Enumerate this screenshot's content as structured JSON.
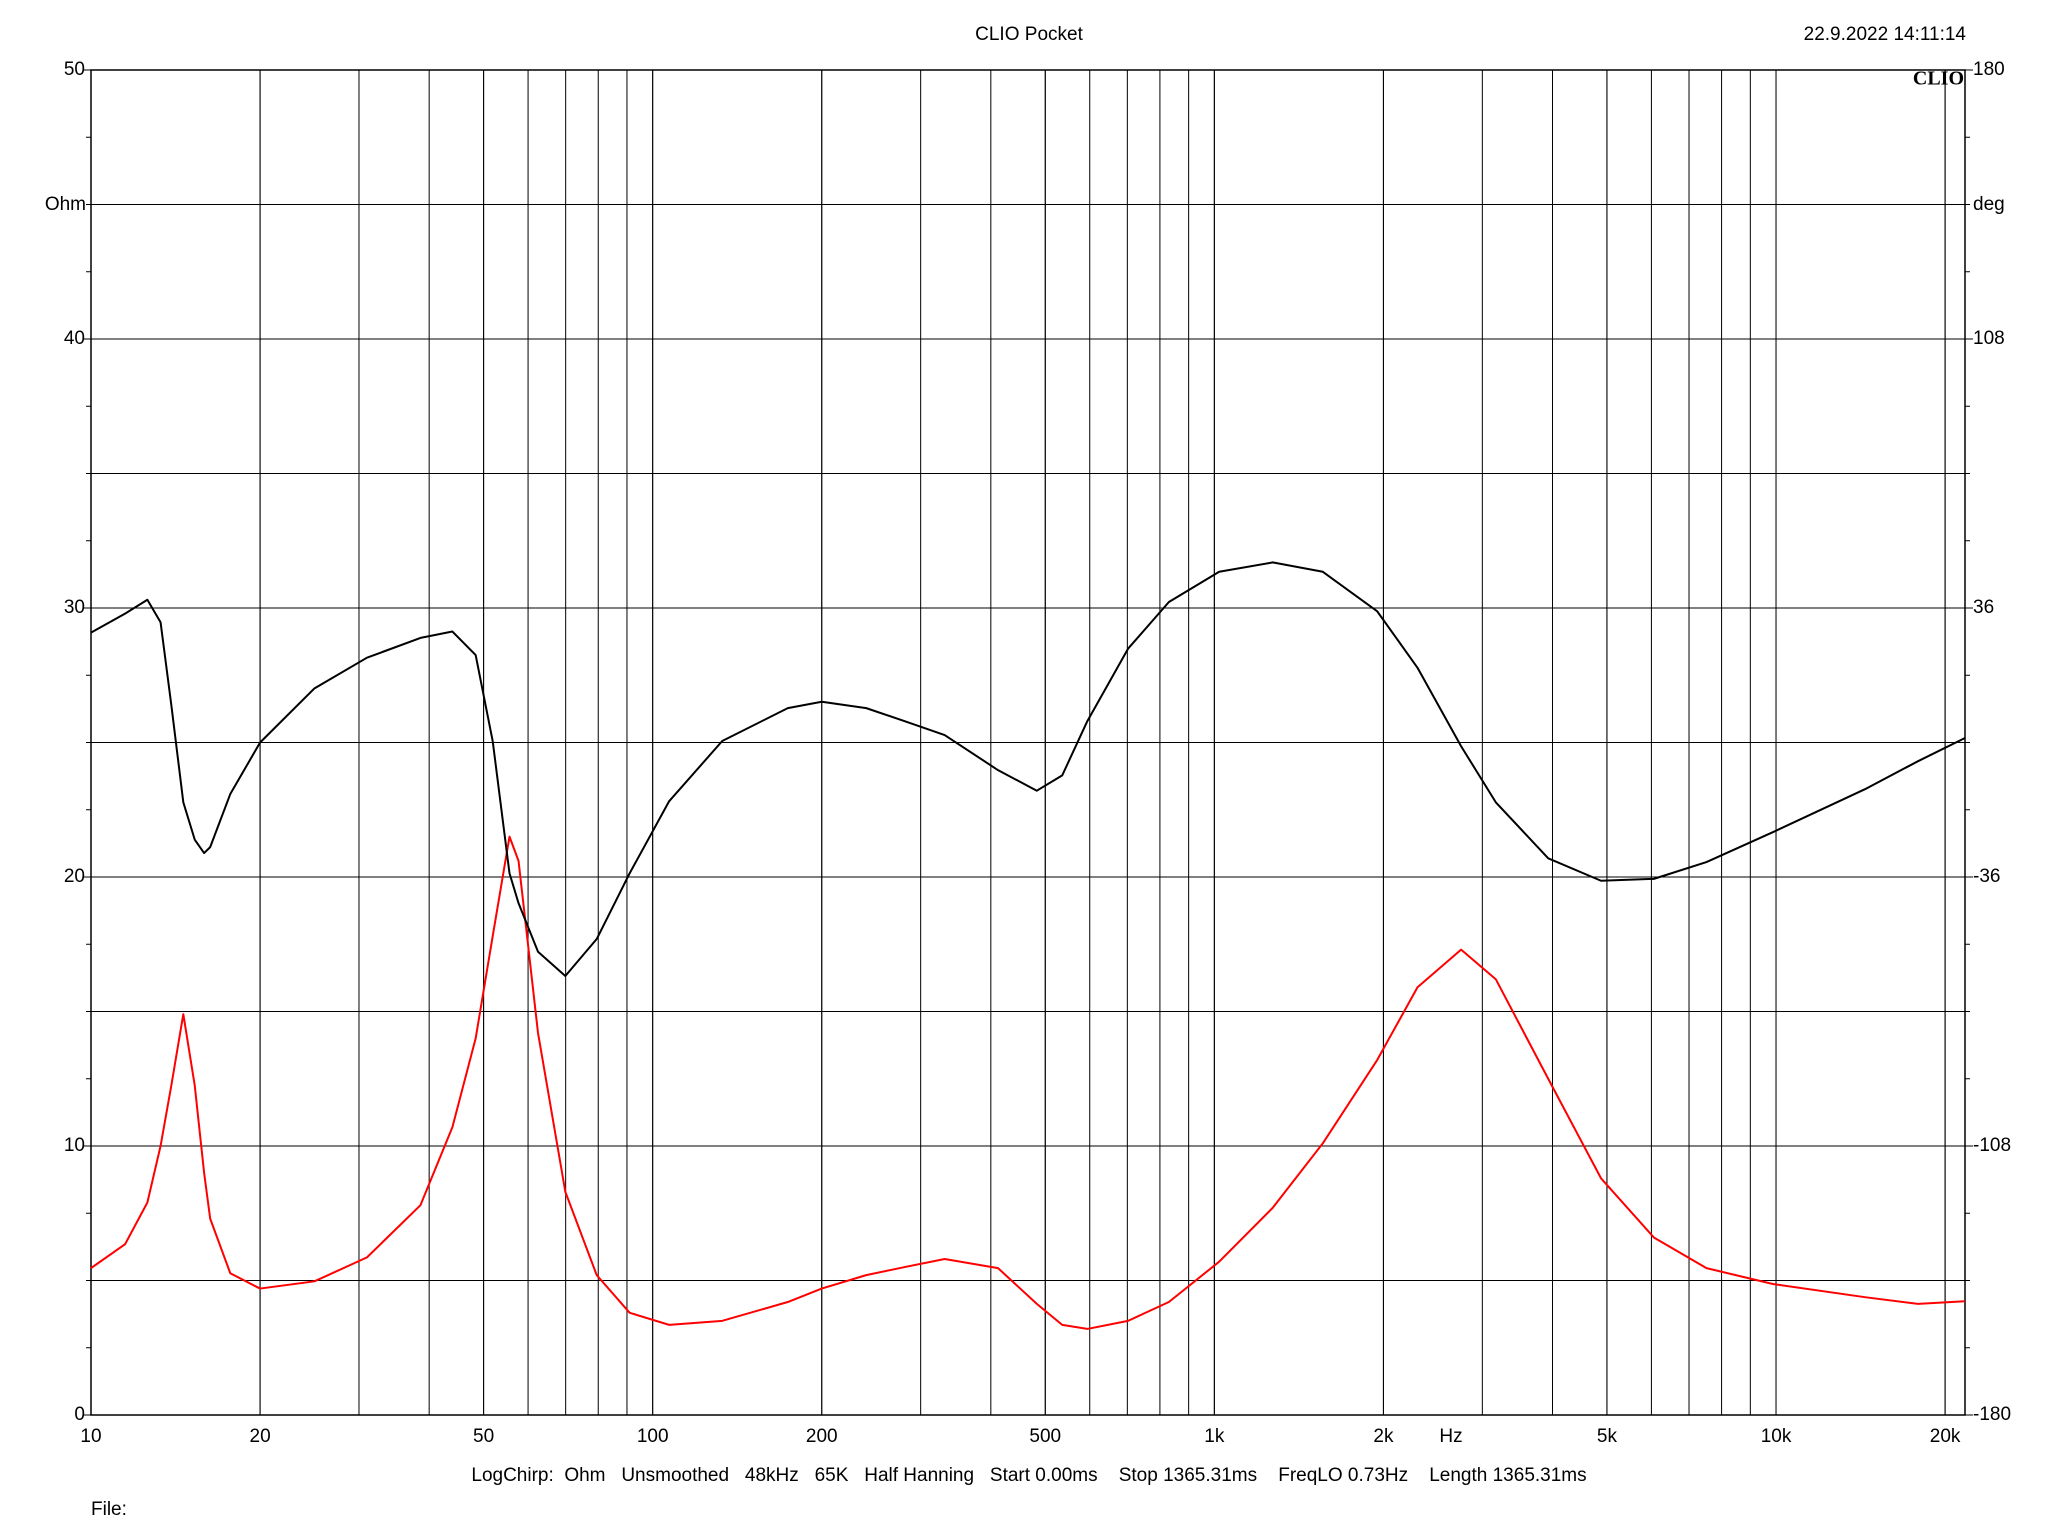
{
  "chart_data": {
    "type": "line",
    "title": "CLIO Pocket",
    "timestamp": "22.9.2022 14:11:14",
    "logo": "CLIO",
    "ylabel": "Ohm",
    "y2label": "deg",
    "xlabel": "Hz",
    "footer": "LogChirp:  Ohm   Unsmoothed   48kHz   65K   Half Hanning   Start 0.00ms    Stop 1365.31ms    FreqLO 0.73Hz    Length 1365.31ms",
    "file_label": "File:",
    "xlog": true,
    "grid": true,
    "xlim": [
      10,
      21700
    ],
    "xticks": [
      10,
      20,
      50,
      100,
      200,
      500,
      {
        "value": 1000,
        "label": "1k"
      },
      {
        "value": 2000,
        "label": "2k"
      },
      {
        "value": 5000,
        "label": "5k"
      },
      {
        "value": 10000,
        "label": "10k"
      },
      {
        "value": 20000,
        "label": "20k"
      }
    ],
    "ylim": [
      0,
      50
    ],
    "yticks": [
      0,
      10,
      20,
      30,
      40,
      50
    ],
    "y2lim": [
      -180,
      180
    ],
    "y2ticks": [
      -180,
      -108,
      -36,
      36,
      108,
      180
    ],
    "x": [
      10,
      11.5,
      12.6,
      13.3,
      13.9,
      14.6,
      15.3,
      15.9,
      16.3,
      17.7,
      20,
      25,
      31,
      38.6,
      44,
      48.4,
      51.9,
      55.6,
      57.7,
      62.5,
      69.9,
      79.5,
      91,
      107,
      133,
      174,
      200,
      240,
      281,
      331,
      412,
      483,
      536,
      594,
      702,
      830,
      1020,
      1270,
      1560,
      1950,
      2300,
      2750,
      3170,
      3930,
      4880,
      6060,
      7520,
      9870,
      14400,
      17900,
      21700
    ],
    "series": [
      {
        "color": "#ff0000",
        "values": [
          5.46,
          6.35,
          7.9,
          10,
          12.25,
          14.9,
          12.25,
          9,
          7.3,
          5.27,
          4.7,
          4.97,
          5.86,
          7.8,
          10.7,
          14,
          17.8,
          21.5,
          20.6,
          14.2,
          8.3,
          5.2,
          3.8,
          3.35,
          3.5,
          4.2,
          4.7,
          5.2,
          5.5,
          5.8,
          5.46,
          4.13,
          3.35,
          3.2,
          3.5,
          4.2,
          5.7,
          7.7,
          10.1,
          13.2,
          15.9,
          17.3,
          16.2,
          12.5,
          8.8,
          6.6,
          5.46,
          4.87,
          4.38,
          4.13,
          4.23
        ]
      },
      {
        "color": "#000000",
        "axis": "y2",
        "values": [
          29.4,
          34.5,
          38.2,
          32.2,
          10,
          -16,
          -26,
          -29.6,
          -28,
          -13.8,
          0,
          14.5,
          22.7,
          28,
          29.7,
          23.4,
          0.4,
          -35,
          -43,
          -56,
          -62.5,
          -52.6,
          -35,
          -15.7,
          0.4,
          9.2,
          10.9,
          9.2,
          5.7,
          2,
          -7.4,
          -12.9,
          -8.8,
          5.7,
          25.1,
          37.6,
          45.7,
          48.2,
          45.7,
          35.1,
          20,
          -1,
          -16,
          -31,
          -37,
          -36.5,
          -32,
          -24,
          -12.5,
          -5,
          1.2
        ]
      }
    ]
  }
}
